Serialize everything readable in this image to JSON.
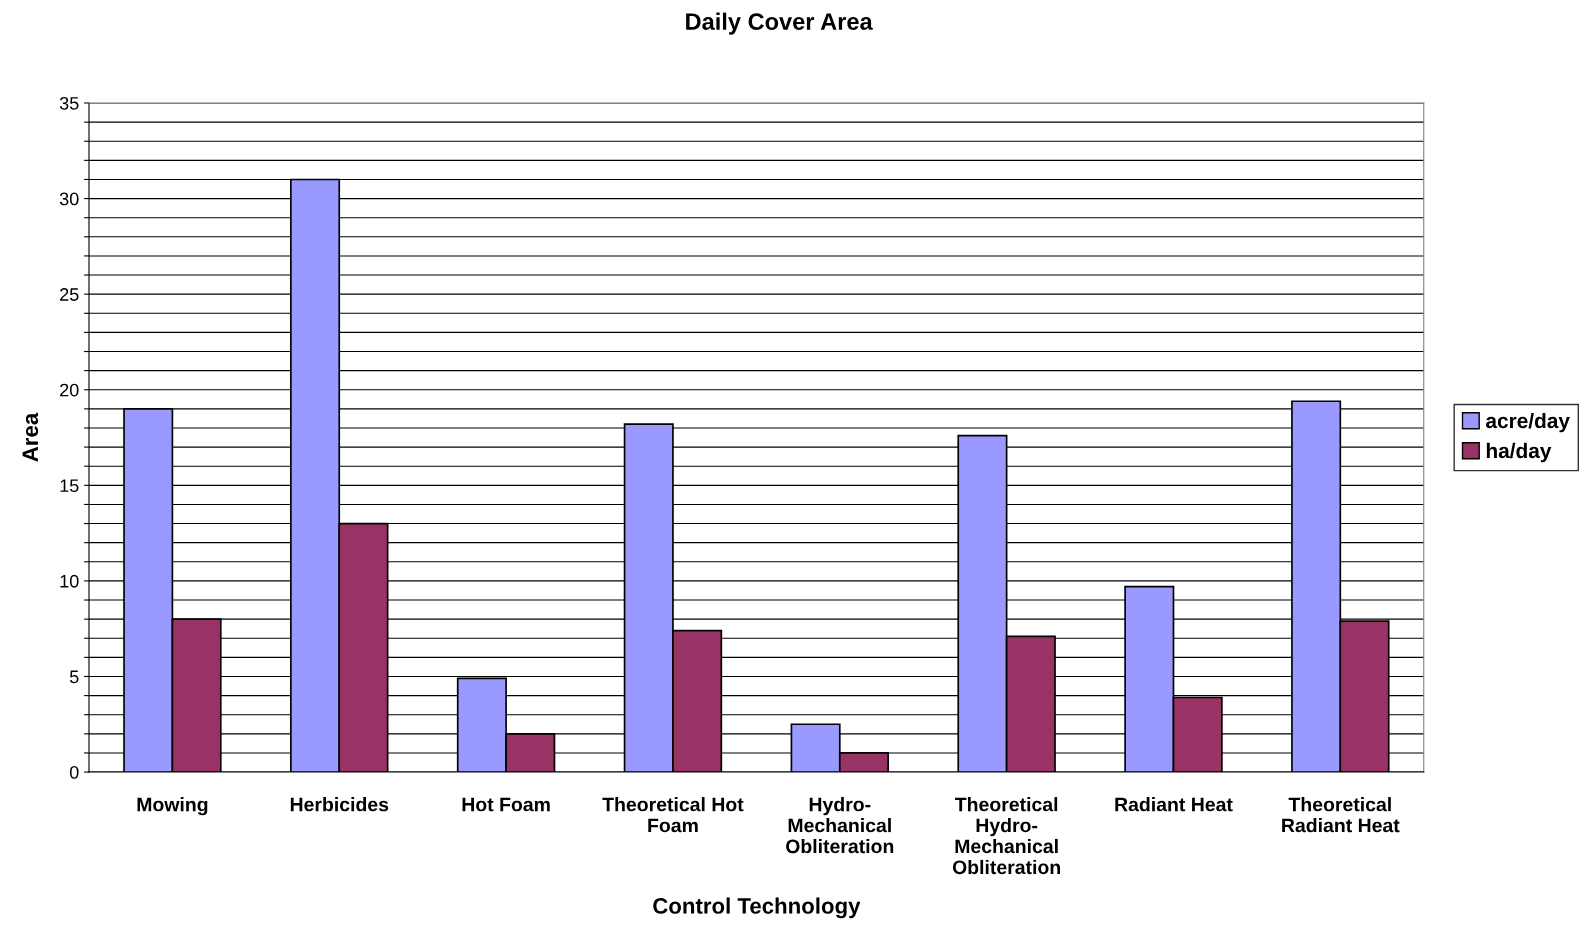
{
  "chart_data": {
    "type": "bar",
    "title": "Daily Cover Area",
    "xlabel": "Control Technology",
    "ylabel": "Area",
    "categories": [
      "Mowing",
      "Herbicides",
      "Hot Foam",
      "Theoretical Hot\nFoam",
      "Hydro-\nMechanical\nObliteration",
      "Theoretical\nHydro-\nMechanical\nObliteration",
      "Radiant Heat",
      "Theoretical\nRadiant Heat"
    ],
    "series": [
      {
        "name": "acre/day",
        "color": "#9999ff",
        "values": [
          19.0,
          31.0,
          4.9,
          18.2,
          2.5,
          17.6,
          9.7,
          19.4
        ]
      },
      {
        "name": "ha/day",
        "color": "#993366",
        "values": [
          8.0,
          13.0,
          2.0,
          7.4,
          1.0,
          7.1,
          3.9,
          7.9
        ]
      }
    ],
    "ylim": [
      0,
      35
    ],
    "yticks": [
      0,
      {
        "value": 1,
        "label": null
      },
      {
        "value": 2,
        "label": null
      },
      {
        "value": 3,
        "label": null
      },
      {
        "value": 4,
        "label": null
      },
      5,
      {
        "value": 6,
        "label": null
      },
      {
        "value": 7,
        "label": null
      },
      {
        "value": 8,
        "label": null
      },
      {
        "value": 9,
        "label": null
      },
      10,
      {
        "value": 11,
        "label": null
      },
      {
        "value": 12,
        "label": null
      },
      {
        "value": 13,
        "label": null
      },
      {
        "value": 14,
        "label": null
      },
      15,
      {
        "value": 16,
        "label": null
      },
      {
        "value": 17,
        "label": null
      },
      {
        "value": 18,
        "label": null
      },
      {
        "value": 19,
        "label": null
      },
      20,
      {
        "value": 21,
        "label": null
      },
      {
        "value": 22,
        "label": null
      },
      {
        "value": 23,
        "label": null
      },
      {
        "value": 24,
        "label": null
      },
      25,
      {
        "value": 26,
        "label": null
      },
      {
        "value": 27,
        "label": null
      },
      {
        "value": 28,
        "label": null
      },
      {
        "value": 29,
        "label": null
      },
      30,
      {
        "value": 31,
        "label": null
      },
      {
        "value": 32,
        "label": null
      },
      {
        "value": 33,
        "label": null
      },
      {
        "value": 34,
        "label": null
      },
      35
    ],
    "grid": "y",
    "legend": "right"
  }
}
